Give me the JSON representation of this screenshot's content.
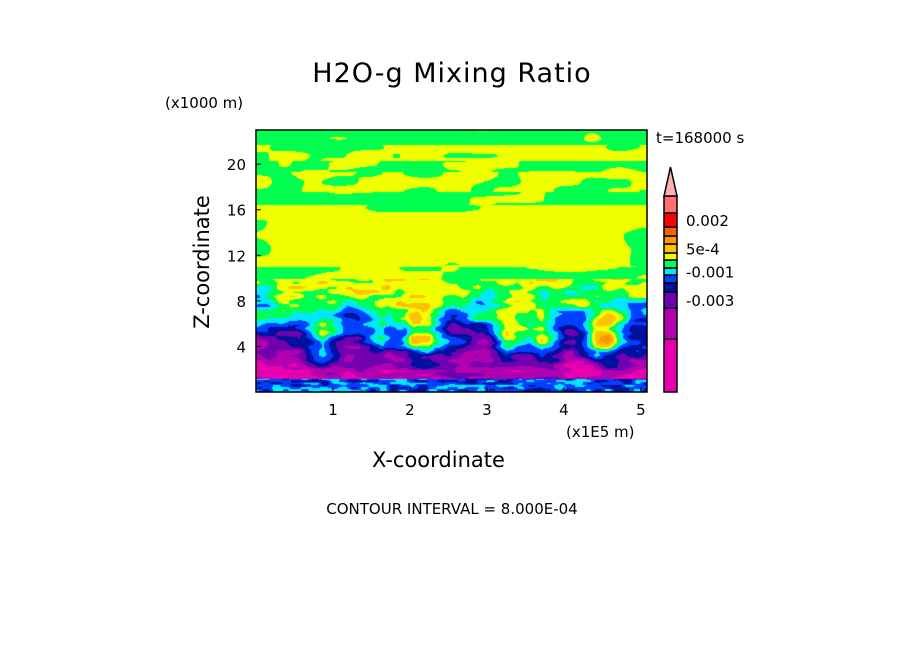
{
  "chart_data": {
    "type": "heatmap",
    "title": "H2O-g Mixing Ratio",
    "xlabel": "X-coordinate",
    "ylabel": "Z-coordinate",
    "x_unit": "(x1E5 m)",
    "y_unit": "(x1000 m)",
    "time_label": "t=168000 s",
    "contour_interval_label": "CONTOUR INTERVAL = 8.000E-04",
    "xlim": [
      0,
      5.08
    ],
    "ylim": [
      0,
      23
    ],
    "x_ticks": [
      {
        "v": 1,
        "label": "1"
      },
      {
        "v": 2,
        "label": "2"
      },
      {
        "v": 3,
        "label": "3"
      },
      {
        "v": 4,
        "label": "4"
      },
      {
        "v": 5,
        "label": "5"
      }
    ],
    "y_ticks": [
      {
        "v": 4,
        "label": "4"
      },
      {
        "v": 8,
        "label": "8"
      },
      {
        "v": 12,
        "label": "12"
      },
      {
        "v": 16,
        "label": "16"
      },
      {
        "v": 20,
        "label": "20"
      }
    ],
    "colorbar": {
      "levels": [
        {
          "color": "#e800b0"
        },
        {
          "color": "#b000b0"
        },
        {
          "color": "#7000b0"
        },
        {
          "color": "#0010a0"
        },
        {
          "color": "#0040ff"
        },
        {
          "color": "#00e8ff"
        },
        {
          "color": "#00ff50"
        },
        {
          "color": "#f0ff00"
        },
        {
          "color": "#ffc000"
        },
        {
          "color": "#ff9900"
        },
        {
          "color": "#ff6000"
        },
        {
          "color": "#ff0000"
        },
        {
          "color": "#ff7070"
        },
        {
          "color": "#ffb0b0"
        }
      ],
      "labels": [
        {
          "label": "0.002",
          "level": 11
        },
        {
          "label": "5e-4",
          "level": 8
        },
        {
          "label": "-0.001",
          "level": 5
        },
        {
          "label": "-0.003",
          "level": 2
        }
      ]
    }
  }
}
